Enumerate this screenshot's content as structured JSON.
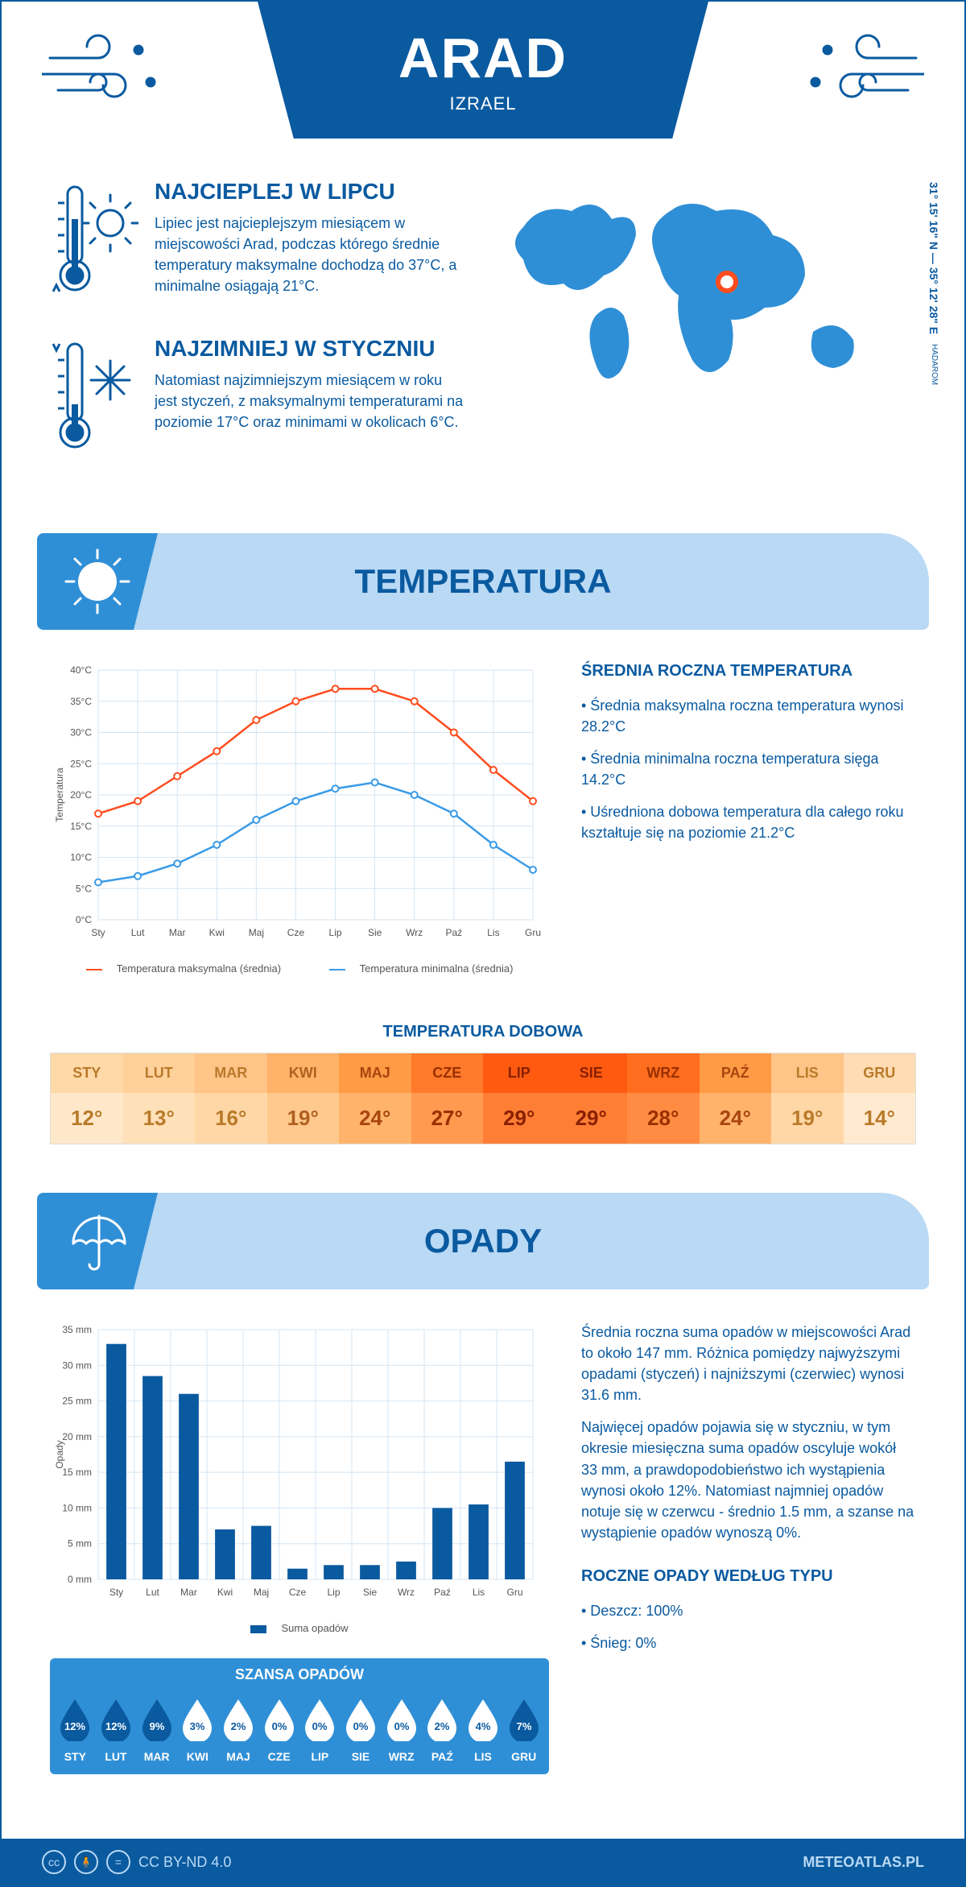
{
  "header": {
    "city": "ARAD",
    "country": "IZRAEL"
  },
  "coords": {
    "main": "31° 15' 16\" N — 35° 12' 28\" E",
    "sub": "HADAROM"
  },
  "warm": {
    "title": "NAJCIEPLEJ W LIPCU",
    "text": "Lipiec jest najcieplejszym miesiącem w miejscowości Arad, podczas którego średnie temperatury maksymalne dochodzą do 37°C, a minimalne osiągają 21°C."
  },
  "cold": {
    "title": "NAJZIMNIEJ W STYCZNIU",
    "text": "Natomiast najzimniejszym miesiącem w roku jest styczeń, z maksymalnymi temperaturami na poziomie 17°C oraz minimami w okolicach 6°C."
  },
  "temp_section_title": "TEMPERATURA",
  "rain_section_title": "OPADY",
  "temp_chart": {
    "months": [
      "Sty",
      "Lut",
      "Mar",
      "Kwi",
      "Maj",
      "Cze",
      "Lip",
      "Sie",
      "Wrz",
      "Paź",
      "Lis",
      "Gru"
    ],
    "max": [
      17,
      19,
      23,
      27,
      32,
      35,
      37,
      37,
      35,
      30,
      24,
      19
    ],
    "min": [
      6,
      7,
      9,
      12,
      16,
      19,
      21,
      22,
      20,
      17,
      12,
      8
    ],
    "colors": {
      "max": "#ff4d1f",
      "min": "#3a9be8",
      "grid": "#d5e5f2",
      "axis": "#888"
    },
    "ylim": [
      0,
      40
    ],
    "ystep": 5,
    "ylabel": "Temperatura",
    "legend_max": "Temperatura maksymalna (średnia)",
    "legend_min": "Temperatura minimalna (średnia)"
  },
  "temp_text": {
    "title": "ŚREDNIA ROCZNA TEMPERATURA",
    "b1": "• Średnia maksymalna roczna temperatura wynosi 28.2°C",
    "b2": "• Średnia minimalna roczna temperatura sięga 14.2°C",
    "b3": "• Uśredniona dobowa temperatura dla całego roku kształtuje się na poziomie 21.2°C"
  },
  "dobowa": {
    "title": "TEMPERATURA DOBOWA",
    "months": [
      "STY",
      "LUT",
      "MAR",
      "KWI",
      "MAJ",
      "CZE",
      "LIP",
      "SIE",
      "WRZ",
      "PAŹ",
      "LIS",
      "GRU"
    ],
    "vals": [
      "12°",
      "13°",
      "16°",
      "19°",
      "24°",
      "27°",
      "29°",
      "29°",
      "28°",
      "24°",
      "19°",
      "14°"
    ],
    "head_colors": [
      "#ffd9a8",
      "#ffd099",
      "#ffc487",
      "#ffb368",
      "#ff9a45",
      "#ff7a2a",
      "#ff5a10",
      "#ff5a10",
      "#ff6d1e",
      "#ff9a45",
      "#ffc487",
      "#ffdcb3"
    ],
    "val_colors": [
      "#ffe8c9",
      "#ffe1b9",
      "#ffd7a6",
      "#ffc98d",
      "#ffb36b",
      "#ff9a50",
      "#ff7e36",
      "#ff7e36",
      "#ff8c42",
      "#ffb36b",
      "#ffd7a6",
      "#ffeacf"
    ],
    "text_head": [
      "#b97a2a",
      "#b97a2a",
      "#b97a2a",
      "#b06020",
      "#a84510",
      "#9a3000",
      "#8a2000",
      "#8a2000",
      "#9a3000",
      "#a84510",
      "#b97a2a",
      "#b97a2a"
    ],
    "text_val": [
      "#b97a2a",
      "#b97a2a",
      "#b97a2a",
      "#b06020",
      "#a84510",
      "#9a3000",
      "#8a2000",
      "#8a2000",
      "#9a3000",
      "#a84510",
      "#b97a2a",
      "#b97a2a"
    ]
  },
  "rain_chart": {
    "months": [
      "Sty",
      "Lut",
      "Mar",
      "Kwi",
      "Maj",
      "Cze",
      "Lip",
      "Sie",
      "Wrz",
      "Paź",
      "Lis",
      "Gru"
    ],
    "vals": [
      33,
      28.5,
      26,
      7,
      7.5,
      1.5,
      2,
      2,
      2.5,
      10,
      10.5,
      16.5
    ],
    "color": "#0a5aa0",
    "grid": "#d5e5f2",
    "ylim": [
      0,
      35
    ],
    "ystep": 5,
    "ylabel": "Opady",
    "legend": "Suma opadów"
  },
  "rain_text": {
    "p1": "Średnia roczna suma opadów w miejscowości Arad to około 147 mm. Różnica pomiędzy najwyższymi opadami (styczeń) i najniższymi (czerwiec) wynosi 31.6 mm.",
    "p2": "Najwięcej opadów pojawia się w styczniu, w tym okresie miesięczna suma opadów oscyluje wokół 33 mm, a prawdopodobieństwo ich wystąpienia wynosi około 12%. Natomiast najmniej opadów notuje się w czerwcu - średnio 1.5 mm, a szanse na wystąpienie opadów wynoszą 0%.",
    "type_title": "ROCZNE OPADY WEDŁUG TYPU",
    "t1": "• Deszcz: 100%",
    "t2": "• Śnieg: 0%"
  },
  "rain_chance": {
    "title": "SZANSA OPADÓW",
    "months": [
      "STY",
      "LUT",
      "MAR",
      "KWI",
      "MAJ",
      "CZE",
      "LIP",
      "SIE",
      "WRZ",
      "PAŹ",
      "LIS",
      "GRU"
    ],
    "pct": [
      "12%",
      "12%",
      "9%",
      "3%",
      "2%",
      "0%",
      "0%",
      "0%",
      "0%",
      "2%",
      "4%",
      "7%"
    ],
    "filled": [
      true,
      true,
      true,
      false,
      false,
      false,
      false,
      false,
      false,
      false,
      false,
      true
    ]
  },
  "footer": {
    "license": "CC BY-ND 4.0",
    "brand": "METEOATLAS.PL"
  }
}
